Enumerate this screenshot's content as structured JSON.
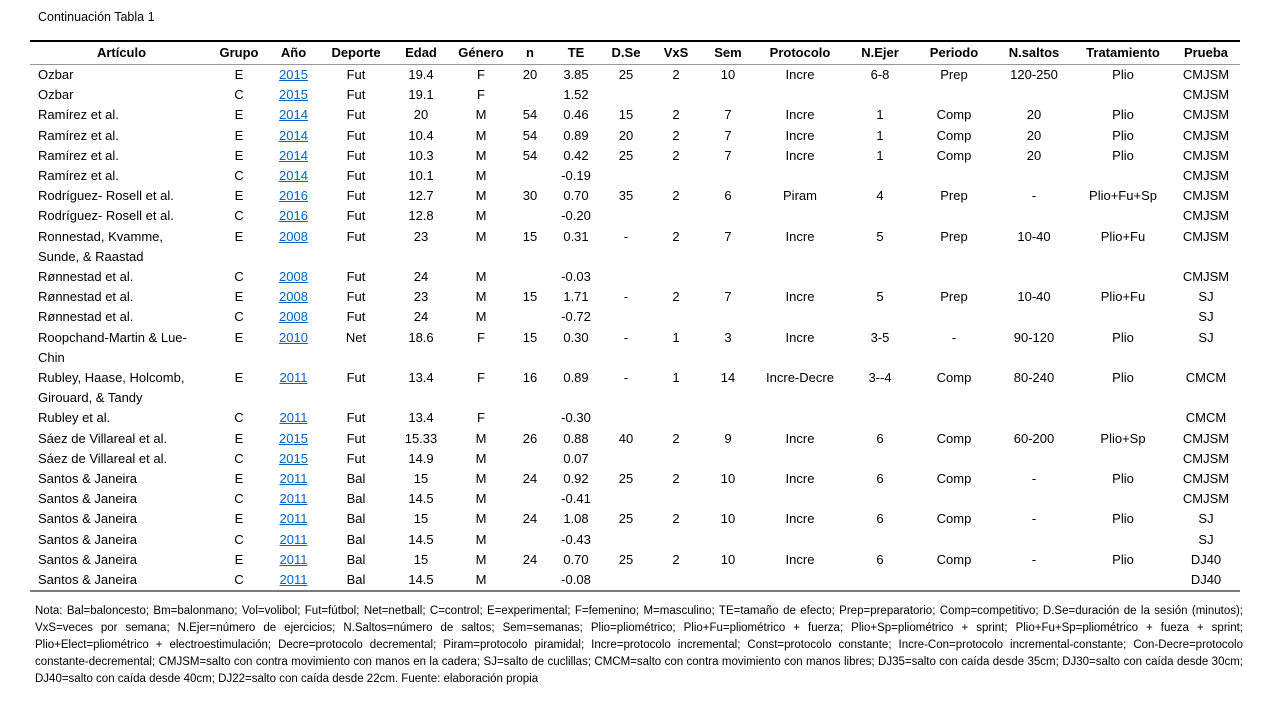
{
  "page": {
    "title": "Continuación Tabla 1"
  },
  "colors": {
    "link": "#0563C1",
    "text": "#000000",
    "rule_dark": "#000000",
    "rule_gray": "#7a7a7a"
  },
  "table": {
    "headers": [
      "Artículo",
      "Grupo",
      "Año",
      "Deporte",
      "Edad",
      "Género",
      "n",
      "TE",
      "D.Se",
      "VxS",
      "Sem",
      "Protocolo",
      "N.Ejer",
      "Periodo",
      "N.saltos",
      "Tratamiento",
      "Prueba"
    ],
    "rows": [
      [
        "Ozbar",
        "E",
        "2015",
        "Fut",
        "19.4",
        "F",
        "20",
        "3.85",
        "25",
        "2",
        "10",
        "Incre",
        "6-8",
        "Prep",
        "120-250",
        "Plio",
        "CMJSM"
      ],
      [
        "Ozbar",
        "C",
        "2015",
        "Fut",
        "19.1",
        "F",
        "",
        "1.52",
        "",
        "",
        "",
        "",
        "",
        "",
        "",
        "",
        "CMJSM"
      ],
      [
        "Ramírez et al.",
        "E",
        "2014",
        "Fut",
        "20",
        "M",
        "54",
        "0.46",
        "15",
        "2",
        "7",
        "Incre",
        "1",
        "Comp",
        "20",
        "Plio",
        "CMJSM"
      ],
      [
        "Ramírez et al.",
        "E",
        "2014",
        "Fut",
        "10.4",
        "M",
        "54",
        "0.89",
        "20",
        "2",
        "7",
        "Incre",
        "1",
        "Comp",
        "20",
        "Plio",
        "CMJSM"
      ],
      [
        "Ramírez et al.",
        "E",
        "2014",
        "Fut",
        "10.3",
        "M",
        "54",
        "0.42",
        "25",
        "2",
        "7",
        "Incre",
        "1",
        "Comp",
        "20",
        "Plio",
        "CMJSM"
      ],
      [
        "Ramírez et al.",
        "C",
        "2014",
        "Fut",
        "10.1",
        "M",
        "",
        "-0.19",
        "",
        "",
        "",
        "",
        "",
        "",
        "",
        "",
        "CMJSM"
      ],
      [
        "Rodríguez- Rosell et al.",
        "E",
        "2016",
        "Fut",
        "12.7",
        "M",
        "30",
        "0.70",
        "35",
        "2",
        "6",
        "Piram",
        "4",
        "Prep",
        "-",
        "Plio+Fu+Sp",
        "CMJSM"
      ],
      [
        "Rodríguez- Rosell et al.",
        "C",
        "2016",
        "Fut",
        "12.8",
        "M",
        "",
        "-0.20",
        "",
        "",
        "",
        "",
        "",
        "",
        "",
        "",
        "CMJSM"
      ],
      [
        "Ronnestad, Kvamme,\nSunde, & Raastad",
        "E",
        "2008",
        "Fut",
        "23",
        "M",
        "15",
        "0.31",
        "-",
        "2",
        "7",
        "Incre",
        "5",
        "Prep",
        "10-40",
        "Plio+Fu",
        "CMJSM"
      ],
      [
        "Rønnestad et al.",
        "C",
        "2008",
        "Fut",
        "24",
        "M",
        "",
        "-0.03",
        "",
        "",
        "",
        "",
        "",
        "",
        "",
        "",
        "CMJSM"
      ],
      [
        "Rønnestad et al.",
        "E",
        "2008",
        "Fut",
        "23",
        "M",
        "15",
        "1.71",
        "-",
        "2",
        "7",
        "Incre",
        "5",
        "Prep",
        "10-40",
        "Plio+Fu",
        "SJ"
      ],
      [
        "Rønnestad et al.",
        "C",
        "2008",
        "Fut",
        "24",
        "M",
        "",
        "-0.72",
        "",
        "",
        "",
        "",
        "",
        "",
        "",
        "",
        "SJ"
      ],
      [
        "Roopchand-Martin & Lue-\nChin",
        "E",
        "2010",
        "Net",
        "18.6",
        "F",
        "15",
        "0.30",
        "-",
        "1",
        "3",
        "Incre",
        "3-5",
        "-",
        "90-120",
        "Plio",
        "SJ"
      ],
      [
        "Rubley, Haase, Holcomb,\nGirouard, & Tandy",
        "E",
        "2011",
        "Fut",
        "13.4",
        "F",
        "16",
        "0.89",
        "-",
        "1",
        "14",
        "Incre-Decre",
        "3--4",
        "Comp",
        "80-240",
        "Plio",
        "CMCM"
      ],
      [
        "Rubley et al.",
        "C",
        "2011",
        "Fut",
        "13.4",
        "F",
        "",
        "-0.30",
        "",
        "",
        "",
        "",
        "",
        "",
        "",
        "",
        "CMCM"
      ],
      [
        "Sáez de Villareal et al.",
        "E",
        "2015",
        "Fut",
        "15.33",
        "M",
        "26",
        "0.88",
        "40",
        "2",
        "9",
        "Incre",
        "6",
        "Comp",
        "60-200",
        "Plio+Sp",
        "CMJSM"
      ],
      [
        "Sáez de Villareal et al.",
        "C",
        "2015",
        "Fut",
        "14.9",
        "M",
        "",
        "0.07",
        "",
        "",
        "",
        "",
        "",
        "",
        "",
        "",
        "CMJSM"
      ],
      [
        "Santos & Janeira",
        "E",
        "2011",
        "Bal",
        "15",
        "M",
        "24",
        "0.92",
        "25",
        "2",
        "10",
        "Incre",
        "6",
        "Comp",
        "-",
        "Plio",
        "CMJSM"
      ],
      [
        "Santos & Janeira",
        "C",
        "2011",
        "Bal",
        "14.5",
        "M",
        "",
        "-0.41",
        "",
        "",
        "",
        "",
        "",
        "",
        "",
        "",
        "CMJSM"
      ],
      [
        "Santos & Janeira",
        "E",
        "2011",
        "Bal",
        "15",
        "M",
        "24",
        "1.08",
        "25",
        "2",
        "10",
        "Incre",
        "6",
        "Comp",
        "-",
        "Plio",
        "SJ"
      ],
      [
        "Santos & Janeira",
        "C",
        "2011",
        "Bal",
        "14.5",
        "M",
        "",
        "-0.43",
        "",
        "",
        "",
        "",
        "",
        "",
        "",
        "",
        "SJ"
      ],
      [
        "Santos & Janeira",
        "E",
        "2011",
        "Bal",
        "15",
        "M",
        "24",
        "0.70",
        "25",
        "2",
        "10",
        "Incre",
        "6",
        "Comp",
        "-",
        "Plio",
        "DJ40"
      ],
      [
        "Santos & Janeira",
        "C",
        "2011",
        "Bal",
        "14.5",
        "M",
        "",
        "-0.08",
        "",
        "",
        "",
        "",
        "",
        "",
        "",
        "",
        "DJ40"
      ]
    ]
  },
  "footnote": "Nota: Bal=baloncesto; Bm=balonmano; Vol=volibol; Fut=fútbol; Net=netball; C=control; E=experimental; F=femenino; M=masculino; TE=tamaño de efecto; Prep=preparatorio; Comp=competitivo; D.Se=duración de la sesión (minutos); VxS=veces por semana; N.Ejer=número de ejercicios; N.Saltos=número de saltos; Sem=semanas; Plio=pliométrico; Plio+Fu=pliométrico + fuerza; Plio+Sp=pliométrico + sprint; Plio+Fu+Sp=pliométrico + fueza + sprint; Plio+Elect=pliométrico + electroestimulación; Decre=protocolo decremental; Piram=protocolo piramidal; Incre=protocolo incremental; Const=protocolo constante; Incre-Con=protocolo incremental-constante; Con-Decre=protocolo constante-decremental; CMJSM=salto con contra movimiento con manos en la cadera; SJ=salto de cuclillas; CMCM=salto con contra movimiento con manos libres; DJ35=salto con caída desde 35cm; DJ30=salto con caída desde 30cm; DJ40=salto con caída desde 40cm; DJ22=salto con caída desde 22cm. Fuente: elaboración propia"
}
